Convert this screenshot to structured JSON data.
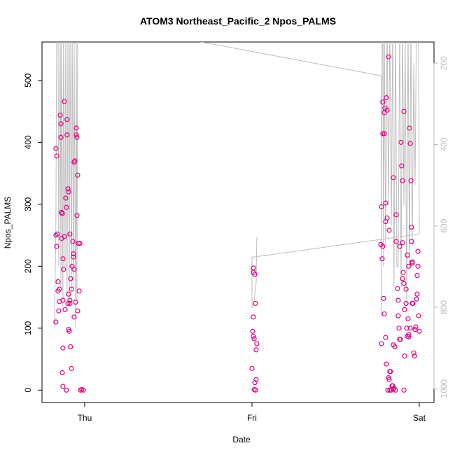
{
  "chart_data": {
    "type": "scatter",
    "title": "ATOM3 Northeast_Pacific_2 Npos_PALMS",
    "xlabel": "Date",
    "ylabel": "Npos_PALMS",
    "xlim": [
      -0.255,
      2.088
    ],
    "xticks": [
      {
        "value": 0,
        "label": "Thu"
      },
      {
        "value": 1,
        "label": "Fri"
      },
      {
        "value": 2,
        "label": "Sat"
      }
    ],
    "ylim": [
      -20,
      562
    ],
    "yticks": [
      0,
      100,
      200,
      300,
      400,
      500
    ],
    "y2lim": [
      1034,
      148
    ],
    "y2ticks": [
      200,
      400,
      600,
      800,
      1000
    ],
    "series": [
      {
        "type": "scatter",
        "color": "#e6007e",
        "x": [
          -0.172,
          -0.167,
          -0.172,
          -0.163,
          -0.167,
          -0.172,
          -0.159,
          -0.159,
          -0.155,
          -0.151,
          -0.151,
          -0.146,
          -0.142,
          -0.142,
          -0.138,
          -0.138,
          -0.134,
          -0.13,
          -0.126,
          -0.121,
          -0.121,
          -0.13,
          -0.13,
          -0.13,
          -0.134,
          -0.109,
          -0.117,
          -0.113,
          -0.109,
          -0.105,
          -0.105,
          -0.1,
          -0.096,
          -0.1,
          -0.096,
          -0.096,
          -0.092,
          -0.088,
          -0.088,
          -0.088,
          -0.084,
          -0.084,
          -0.079,
          -0.079,
          -0.075,
          -0.071,
          -0.067,
          -0.067,
          -0.063,
          -0.063,
          -0.059,
          -0.063,
          -0.054,
          -0.05,
          -0.05,
          -0.046,
          -0.046,
          -0.042,
          -0.042,
          -0.038,
          -0.033,
          -0.029,
          -0.025,
          -0.017,
          -0.008,
          1.008,
          1.008,
          1.017,
          1.021,
          1.008,
          1.004,
          1.008,
          1.013,
          1.029,
          1.025,
          1.0,
          1.017,
          1.025,
          1.013,
          1.021,
          1.774,
          1.782,
          1.782,
          1.791,
          1.791,
          1.795,
          1.803,
          1.808,
          1.799,
          1.799,
          1.808,
          1.816,
          1.82,
          1.77,
          1.782,
          1.778,
          1.787,
          1.791,
          1.774,
          1.799,
          1.803,
          1.816,
          1.82,
          1.824,
          1.828,
          1.837,
          1.841,
          1.845,
          1.812,
          1.824,
          1.833,
          1.849,
          1.858,
          1.854,
          1.845,
          1.845,
          1.862,
          1.862,
          1.87,
          1.874,
          1.874,
          1.879,
          1.883,
          1.887,
          1.891,
          1.895,
          1.9,
          1.9,
          1.904,
          1.9,
          1.908,
          1.908,
          1.912,
          1.921,
          1.925,
          1.929,
          1.933,
          1.937,
          1.941,
          1.946,
          1.95,
          1.954,
          1.954,
          1.958,
          1.958,
          1.958,
          1.962,
          1.967,
          1.971,
          1.975,
          1.979,
          1.983,
          1.987,
          1.987,
          1.992,
          1.992,
          1.996,
          2.0,
          1.908,
          1.937,
          1.946,
          1.912,
          1.929,
          1.937,
          1.921,
          1.883
        ],
        "values": [
          390,
          378,
          250,
          252,
          232,
          110,
          175,
          160,
          128,
          143,
          163,
          444,
          430,
          408,
          287,
          245,
          285,
          212,
          195,
          466,
          248,
          145,
          68,
          6,
          28,
          0,
          130,
          310,
          295,
          412,
          437,
          325,
          320,
          140,
          155,
          98,
          95,
          145,
          140,
          252,
          70,
          180,
          163,
          35,
          200,
          240,
          215,
          220,
          195,
          368,
          370,
          118,
          142,
          423,
          412,
          408,
          282,
          347,
          128,
          237,
          160,
          237,
          0,
          1,
          0,
          197,
          190,
          187,
          140,
          118,
          95,
          87,
          83,
          75,
          65,
          35,
          12,
          17,
          1,
          0,
          296,
          465,
          414,
          414,
          448,
          455,
          472,
          452,
          302,
          272,
          278,
          538,
          258,
          235,
          232,
          212,
          148,
          123,
          75,
          85,
          42,
          20,
          17,
          30,
          30,
          7,
          7,
          2,
          0,
          0,
          0,
          3,
          0,
          70,
          73,
          343,
          283,
          240,
          164,
          145,
          120,
          100,
          82,
          82,
          400,
          362,
          338,
          238,
          190,
          180,
          450,
          172,
          130,
          140,
          100,
          87,
          115,
          90,
          423,
          398,
          338,
          263,
          240,
          207,
          205,
          140,
          140,
          60,
          55,
          98,
          102,
          147,
          155,
          185,
          200,
          224,
          120,
          95,
          0,
          86,
          100,
          55,
          218,
          200,
          163,
          232
        ]
      },
      {
        "type": "line",
        "color": "#bdbdbd",
        "axis": "y2",
        "x": [
          -0.18,
          -0.172,
          -0.167,
          -0.159,
          -0.155,
          -0.146,
          -0.142,
          -0.138,
          -0.13,
          -0.126,
          -0.117,
          -0.113,
          -0.105,
          -0.1,
          -0.092,
          -0.088,
          -0.079,
          -0.075,
          -0.067,
          -0.063,
          -0.054,
          -0.05,
          -0.046,
          -0.042,
          -0.033,
          -0.013,
          1.774,
          1.774,
          1.778,
          1.782,
          1.787,
          1.791,
          1.799,
          1.808,
          1.816,
          1.824,
          1.833,
          1.841,
          1.849,
          1.858,
          1.866,
          1.874,
          1.883,
          1.891,
          1.9,
          1.908,
          1.916,
          1.925,
          1.933,
          1.941,
          1.95,
          1.958,
          1.967,
          1.975,
          1.983,
          1.996,
          2.0,
          2.0,
          1.0,
          1.0,
          1.008,
          1.025,
          1.029
        ],
        "values": [
          850,
          600,
          100,
          100,
          700,
          100,
          750,
          100,
          800,
          100,
          700,
          100,
          780,
          100,
          800,
          100,
          760,
          100,
          750,
          150,
          850,
          120,
          780,
          100,
          120,
          93,
          231,
          820,
          150,
          100,
          700,
          100,
          650,
          100,
          550,
          100,
          600,
          100,
          750,
          100,
          700,
          700,
          100,
          750,
          100,
          550,
          150,
          800,
          100,
          700,
          100,
          650,
          200,
          500,
          100,
          160,
          600,
          620,
          677,
          800,
          800,
          740,
          627
        ]
      }
    ]
  }
}
